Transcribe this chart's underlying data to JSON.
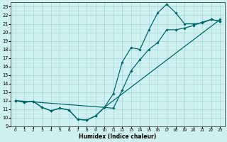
{
  "xlabel": "Humidex (Indice chaleur)",
  "xlim": [
    -0.5,
    23.5
  ],
  "ylim": [
    9,
    23.5
  ],
  "yticks": [
    9,
    10,
    11,
    12,
    13,
    14,
    15,
    16,
    17,
    18,
    19,
    20,
    21,
    22,
    23
  ],
  "xticks": [
    0,
    1,
    2,
    3,
    4,
    5,
    6,
    7,
    8,
    9,
    10,
    11,
    12,
    13,
    14,
    15,
    16,
    17,
    18,
    19,
    20,
    21,
    22,
    23
  ],
  "background_color": "#cff0f0",
  "grid_color": "#aadada",
  "line_color": "#006868",
  "line1_x": [
    0,
    1,
    2,
    3,
    4,
    5,
    6,
    7,
    8,
    9,
    10,
    11,
    12,
    13,
    14,
    15,
    16,
    17,
    18,
    19,
    20,
    21,
    22,
    23
  ],
  "line1_y": [
    12,
    11.8,
    11.9,
    11.2,
    10.8,
    11.1,
    10.9,
    9.8,
    9.7,
    10.2,
    11.2,
    12.8,
    16.5,
    18.2,
    18.0,
    20.3,
    22.3,
    23.3,
    22.3,
    21.0,
    21.0,
    21.1,
    21.5,
    21.3
  ],
  "line2_x": [
    0,
    1,
    2,
    3,
    4,
    5,
    6,
    7,
    8,
    9,
    10,
    11,
    12,
    13,
    14,
    15,
    16,
    17,
    18,
    19,
    20,
    21,
    22,
    23
  ],
  "line2_y": [
    12,
    11.8,
    11.9,
    11.2,
    10.8,
    11.1,
    10.9,
    9.8,
    9.7,
    10.2,
    11.2,
    11.1,
    13.2,
    15.5,
    16.8,
    18.0,
    18.8,
    20.3,
    20.3,
    20.5,
    20.8,
    21.2,
    21.5,
    21.3
  ],
  "line3_x": [
    0,
    10,
    23
  ],
  "line3_y": [
    12,
    11.2,
    21.5
  ]
}
